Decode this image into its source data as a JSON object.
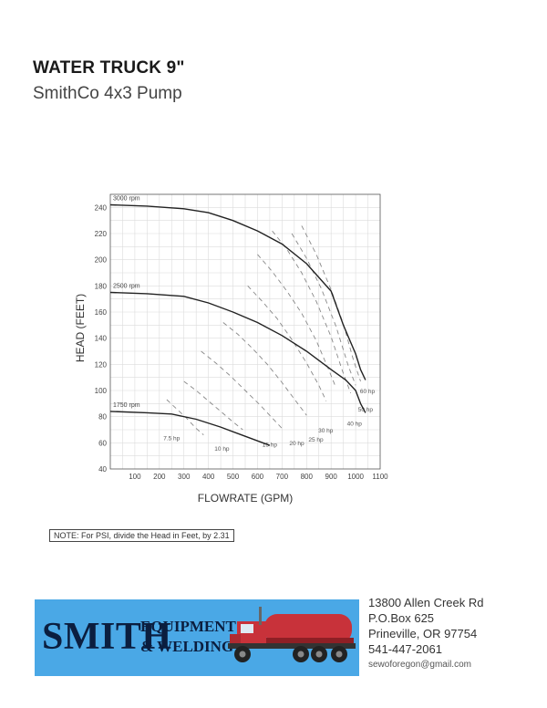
{
  "header": {
    "title": "WATER TRUCK 9\"",
    "subtitle": "SmithCo 4x3 Pump"
  },
  "note": "NOTE: For PSI, divide the Head in Feet, by 2.31",
  "company": {
    "logo_big": "SMITH",
    "logo_line1": "EQUIPMENT",
    "logo_line2": "& WELDING",
    "address": [
      "13800 Allen Creek Rd",
      "P.O.Box 625",
      "Prineville, OR 97754",
      "541-447-2061",
      "sewoforegon@gmail.com"
    ],
    "banner_color": "#4aa8e6",
    "truck_color": "#c8323a"
  },
  "chart_data": {
    "type": "line",
    "xlabel": "FLOWRATE (GPM)",
    "ylabel": "HEAD (FEET)",
    "xlim": [
      0,
      1100
    ],
    "ylim": [
      40,
      250
    ],
    "xticks": [
      100,
      200,
      300,
      400,
      500,
      600,
      700,
      800,
      900,
      1000,
      1100
    ],
    "yticks": [
      40,
      60,
      80,
      100,
      120,
      140,
      160,
      180,
      200,
      220,
      240
    ],
    "grid": true,
    "series": [
      {
        "name": "3000 rpm",
        "points": [
          [
            0,
            242
          ],
          [
            150,
            241
          ],
          [
            300,
            239
          ],
          [
            400,
            236
          ],
          [
            500,
            230
          ],
          [
            600,
            222
          ],
          [
            700,
            212
          ],
          [
            800,
            197
          ],
          [
            900,
            176
          ],
          [
            950,
            150
          ],
          [
            1000,
            128
          ],
          [
            1020,
            116
          ],
          [
            1040,
            108
          ]
        ]
      },
      {
        "name": "2500 rpm",
        "points": [
          [
            0,
            175
          ],
          [
            150,
            174
          ],
          [
            300,
            172
          ],
          [
            400,
            167
          ],
          [
            500,
            160
          ],
          [
            600,
            152
          ],
          [
            700,
            142
          ],
          [
            800,
            130
          ],
          [
            900,
            116
          ],
          [
            960,
            108
          ],
          [
            1000,
            100
          ],
          [
            1020,
            90
          ],
          [
            1040,
            83
          ]
        ]
      },
      {
        "name": "1750 rpm",
        "points": [
          [
            0,
            84
          ],
          [
            150,
            83
          ],
          [
            250,
            82
          ],
          [
            350,
            78
          ],
          [
            450,
            72
          ],
          [
            550,
            65
          ],
          [
            650,
            58
          ]
        ]
      }
    ],
    "power_curves": [
      {
        "name": "7.5 hp",
        "points": [
          [
            230,
            93
          ],
          [
            270,
            86
          ],
          [
            310,
            79
          ],
          [
            350,
            71
          ],
          [
            380,
            66
          ]
        ],
        "label_at": [
          250,
          62
        ]
      },
      {
        "name": "10 hp",
        "points": [
          [
            300,
            107
          ],
          [
            350,
            100
          ],
          [
            400,
            92
          ],
          [
            450,
            84
          ],
          [
            500,
            76
          ],
          [
            540,
            70
          ]
        ],
        "label_at": [
          455,
          54
        ]
      },
      {
        "name": "15 hp",
        "points": [
          [
            370,
            130
          ],
          [
            430,
            121
          ],
          [
            490,
            111
          ],
          [
            550,
            100
          ],
          [
            610,
            89
          ],
          [
            660,
            79
          ],
          [
            700,
            71
          ]
        ],
        "label_at": [
          650,
          57
        ]
      },
      {
        "name": "20 hp",
        "points": [
          [
            460,
            152
          ],
          [
            520,
            143
          ],
          [
            580,
            132
          ],
          [
            640,
            120
          ],
          [
            700,
            106
          ],
          [
            760,
            91
          ],
          [
            800,
            81
          ]
        ],
        "label_at": [
          760,
          58
        ]
      },
      {
        "name": "25 hp",
        "points": [
          [
            560,
            180
          ],
          [
            620,
            168
          ],
          [
            680,
            155
          ],
          [
            740,
            139
          ],
          [
            800,
            121
          ],
          [
            850,
            104
          ],
          [
            880,
            92
          ]
        ],
        "label_at": [
          838,
          61
        ]
      },
      {
        "name": "30 hp",
        "points": [
          [
            600,
            204
          ],
          [
            660,
            191
          ],
          [
            720,
            176
          ],
          [
            780,
            159
          ],
          [
            840,
            138
          ],
          [
            890,
            116
          ],
          [
            920,
            102
          ]
        ],
        "label_at": [
          878,
          68
        ]
      },
      {
        "name": "40 hp",
        "points": [
          [
            660,
            222
          ],
          [
            720,
            208
          ],
          [
            780,
            190
          ],
          [
            840,
            168
          ],
          [
            900,
            141
          ],
          [
            950,
            113
          ],
          [
            980,
            98
          ]
        ],
        "label_at": [
          995,
          73
        ]
      },
      {
        "name": "50 hp",
        "points": [
          [
            740,
            220
          ],
          [
            800,
            201
          ],
          [
            860,
            178
          ],
          [
            920,
            149
          ],
          [
            970,
            119
          ],
          [
            1000,
            104
          ]
        ],
        "label_at": [
          1040,
          84
        ]
      },
      {
        "name": "60 hp",
        "points": [
          [
            780,
            226
          ],
          [
            840,
            204
          ],
          [
            900,
            177
          ],
          [
            950,
            151
          ],
          [
            990,
            124
          ],
          [
            1020,
            107
          ]
        ],
        "label_at": [
          1048,
          98
        ]
      }
    ]
  }
}
